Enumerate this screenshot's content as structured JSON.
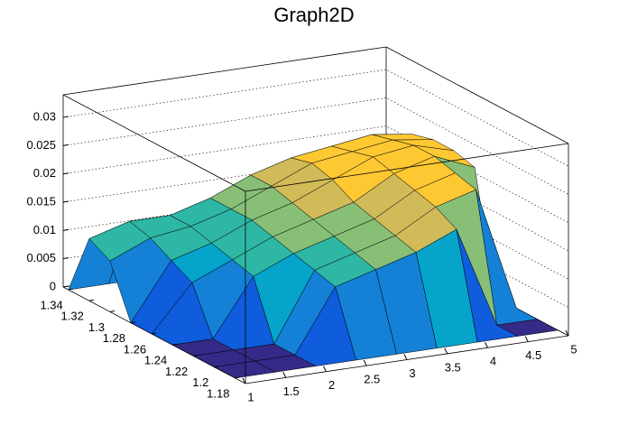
{
  "chart_data": {
    "type": "surface",
    "title": "Graph2D",
    "x": [
      1,
      1.5,
      2,
      2.5,
      3,
      3.5,
      4,
      4.5,
      5
    ],
    "y": [
      1.18,
      1.2,
      1.22,
      1.24,
      1.26,
      1.28,
      1.3,
      1.32,
      1.34
    ],
    "z": [
      [
        0,
        0,
        0,
        0,
        0,
        0,
        0,
        0,
        0
      ],
      [
        0,
        0,
        0,
        0.011,
        0.013,
        0.015,
        0.018,
        0,
        0
      ],
      [
        0,
        0,
        0,
        0.012,
        0.014,
        0.016,
        0.02,
        0.022,
        0
      ],
      [
        0,
        0,
        0.01,
        0.013,
        0.015,
        0.017,
        0.021,
        0.023,
        0
      ],
      [
        0,
        0.008,
        0.011,
        0.014,
        0.016,
        0.018,
        0.022,
        0.024,
        0.021
      ],
      [
        0,
        0.01,
        0.012,
        0.015,
        0.017,
        0.02,
        0.023,
        0.024,
        0.022
      ],
      [
        0.009,
        0.012,
        0.013,
        0.015,
        0.018,
        0.021,
        0.022,
        0.023,
        0.022
      ],
      [
        0.011,
        0.013,
        0.013,
        0.015,
        0.018,
        0.02,
        0.021,
        0.022,
        0.021
      ],
      [
        0,
        0,
        0,
        0,
        0,
        0,
        0,
        0,
        0
      ]
    ],
    "xlim": [
      1,
      5
    ],
    "ylim": [
      1.17,
      1.345
    ],
    "zlim": [
      0,
      0.034
    ],
    "xticks": [
      1,
      1.5,
      2,
      2.5,
      3,
      3.5,
      4,
      4.5,
      5
    ],
    "yticks": [
      1.18,
      1.2,
      1.22,
      1.24,
      1.26,
      1.28,
      1.3,
      1.32,
      1.34
    ],
    "zticks": [
      0,
      0.005,
      0.01,
      0.015,
      0.02,
      0.025,
      0.03
    ],
    "grid": true,
    "palette": [
      "#352a87",
      "#0f5cdd",
      "#1481d6",
      "#06a4ca",
      "#2eb7a4",
      "#87bf77",
      "#d1bb59",
      "#fec832",
      "#f9fb0e"
    ]
  }
}
